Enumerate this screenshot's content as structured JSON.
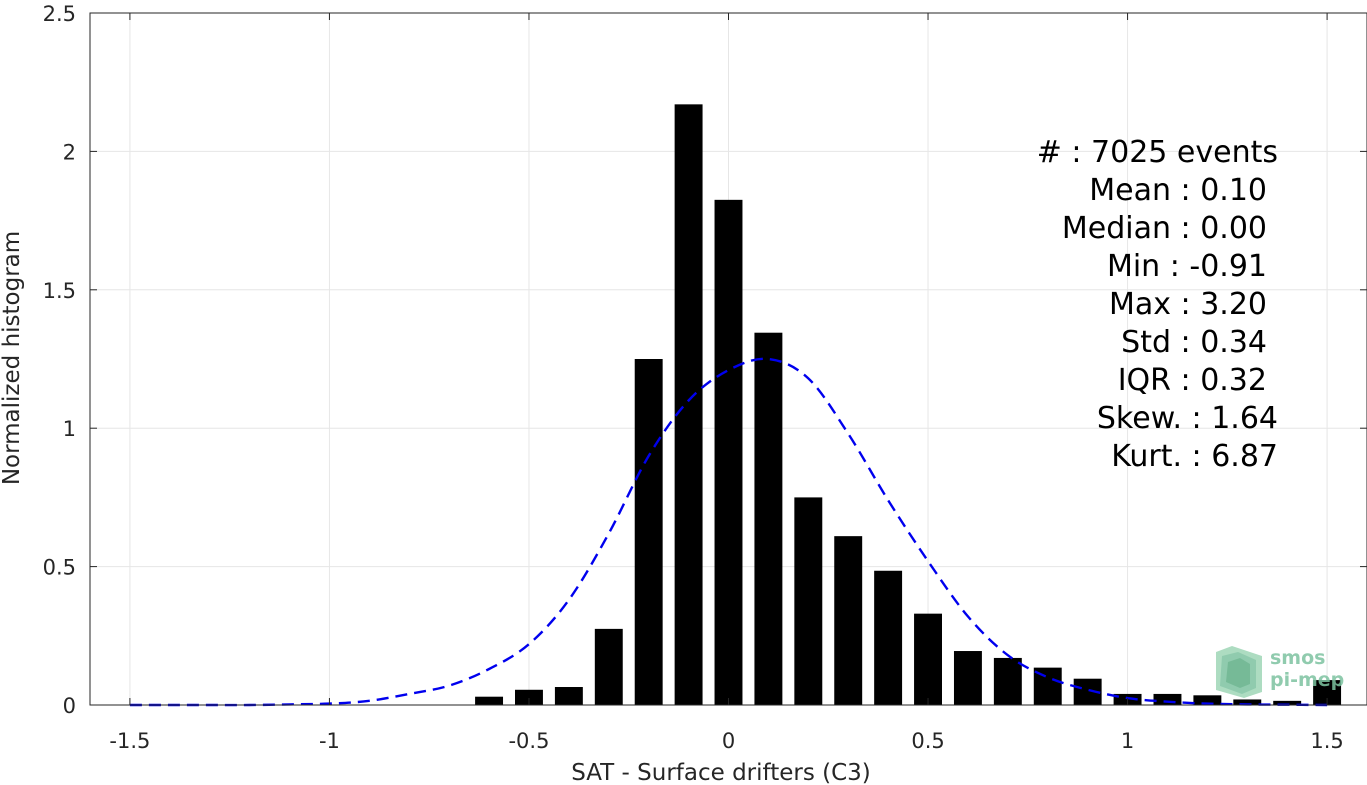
{
  "chart_data": {
    "type": "bar",
    "xlabel": "SAT - Surface drifters (C3)",
    "ylabel": "Normalized histogram",
    "xlim": [
      -1.6,
      1.6
    ],
    "ylim": [
      0,
      2.5
    ],
    "xticks": [
      "-1.5",
      "-1",
      "-0.5",
      "0",
      "0.5",
      "1",
      "1.5"
    ],
    "yticks": [
      "0",
      "0.5",
      "1",
      "1.5",
      "2",
      "2.5"
    ],
    "grid": true,
    "bar_color": "#000000",
    "bar_width": 0.07,
    "bars": [
      {
        "x": -0.6,
        "y": 0.03
      },
      {
        "x": -0.5,
        "y": 0.055
      },
      {
        "x": -0.4,
        "y": 0.065
      },
      {
        "x": -0.3,
        "y": 0.275
      },
      {
        "x": -0.2,
        "y": 1.25
      },
      {
        "x": -0.1,
        "y": 2.17
      },
      {
        "x": 0.0,
        "y": 1.825
      },
      {
        "x": 0.1,
        "y": 1.345
      },
      {
        "x": 0.2,
        "y": 0.75
      },
      {
        "x": 0.3,
        "y": 0.61
      },
      {
        "x": 0.4,
        "y": 0.485
      },
      {
        "x": 0.5,
        "y": 0.33
      },
      {
        "x": 0.6,
        "y": 0.195
      },
      {
        "x": 0.7,
        "y": 0.17
      },
      {
        "x": 0.8,
        "y": 0.135
      },
      {
        "x": 0.9,
        "y": 0.095
      },
      {
        "x": 1.0,
        "y": 0.04
      },
      {
        "x": 1.1,
        "y": 0.04
      },
      {
        "x": 1.2,
        "y": 0.035
      },
      {
        "x": 1.3,
        "y": 0.02
      },
      {
        "x": 1.4,
        "y": 0.015
      },
      {
        "x": 1.5,
        "y": 0.09
      }
    ],
    "fit_curve": {
      "color": "#0000ee",
      "style": "dashed",
      "x": [
        -1.5,
        -1.4,
        -1.3,
        -1.2,
        -1.1,
        -1.0,
        -0.9,
        -0.8,
        -0.7,
        -0.6,
        -0.5,
        -0.4,
        -0.3,
        -0.2,
        -0.1,
        0.0,
        0.1,
        0.2,
        0.3,
        0.4,
        0.5,
        0.6,
        0.7,
        0.8,
        0.9,
        1.0,
        1.1,
        1.2,
        1.3,
        1.4,
        1.5
      ],
      "y": [
        0.0,
        0.0,
        0.0,
        0.0,
        0.002,
        0.005,
        0.015,
        0.04,
        0.07,
        0.13,
        0.22,
        0.38,
        0.62,
        0.9,
        1.1,
        1.21,
        1.25,
        1.18,
        0.98,
        0.74,
        0.52,
        0.32,
        0.18,
        0.1,
        0.055,
        0.025,
        0.012,
        0.005,
        0.002,
        0.001,
        0.0
      ]
    },
    "stats": {
      "count": "#  : 7025 events",
      "mean": "Mean : 0.10",
      "median": "Median : 0.00",
      "min": "Min : -0.91",
      "max": "Max : 3.20",
      "std": "Std : 0.34",
      "iqr": "IQR : 0.32",
      "skew": "Skew. : 1.64",
      "kurt": "Kurt. : 6.87"
    }
  },
  "logo": {
    "line1": "smos",
    "line2": "pi-mep",
    "color": "#7dc3a0"
  }
}
